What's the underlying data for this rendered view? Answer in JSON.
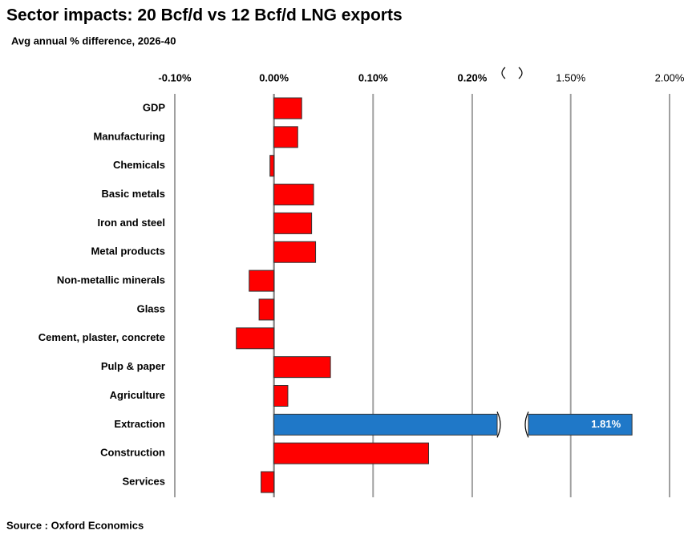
{
  "chart_data": {
    "type": "bar",
    "orientation": "horizontal",
    "title": "Sector impacts: 20 Bcf/d vs 12 Bcf/d LNG exports",
    "subtitle": "Avg annual % difference, 2026-40",
    "source": "Source : Oxford Economics",
    "categories": [
      "GDP",
      "Manufacturing",
      "Chemicals",
      "Basic metals",
      "Iron and steel",
      "Metal products",
      "Non-metallic minerals",
      "Glass",
      "Cement, plaster, concrete",
      "Pulp & paper",
      "Agriculture",
      "Extraction",
      "Construction",
      "Services"
    ],
    "values": [
      0.028,
      0.024,
      -0.004,
      0.04,
      0.038,
      0.042,
      -0.025,
      -0.015,
      -0.038,
      0.057,
      0.014,
      1.81,
      0.156,
      -0.013
    ],
    "value_labels": [
      null,
      null,
      null,
      null,
      null,
      null,
      null,
      null,
      null,
      null,
      null,
      "1.81%",
      null,
      null
    ],
    "colors": [
      "#ff0000",
      "#ff0000",
      "#ff0000",
      "#ff0000",
      "#ff0000",
      "#ff0000",
      "#ff0000",
      "#ff0000",
      "#ff0000",
      "#ff0000",
      "#ff0000",
      "#1f78c8",
      "#ff0000",
      "#ff0000"
    ],
    "xlim": [
      -0.1,
      2.0
    ],
    "axis_break": [
      0.23,
      1.27
    ],
    "xticks": [
      {
        "value": -0.1,
        "label": "-0.10%"
      },
      {
        "value": 0,
        "label": "0.00%"
      },
      {
        "value": 0.1,
        "label": "0.10%"
      },
      {
        "value": 0.2,
        "label": "0.20%"
      },
      {
        "value": 1.5,
        "label": "1.50%"
      },
      {
        "value": 2.0,
        "label": "2.00%"
      }
    ],
    "grid": true
  }
}
